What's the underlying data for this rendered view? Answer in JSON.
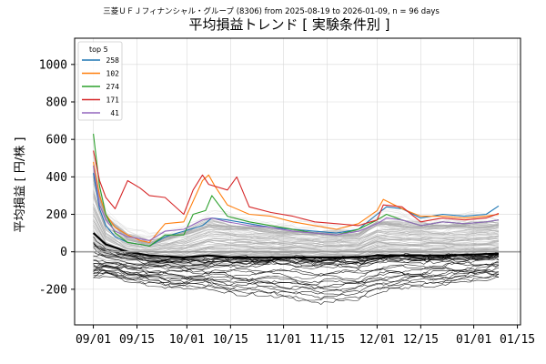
{
  "chart_data": {
    "type": "line",
    "suptitle": "三菱ＵＦＪフィナンシャル・グループ (8306) from 2025-08-19 to 2026-01-09, n = 96 days",
    "title": "平均損益トレンド [ 実験条件別 ]",
    "xlabel": "",
    "ylabel": "平均損益 [ 円/株 ]",
    "xlim": [
      "2025-08-26",
      "2026-01-16"
    ],
    "ylim": [
      -390,
      1140
    ],
    "xticks": [
      {
        "date": "2025-09-01",
        "label": "09/01"
      },
      {
        "date": "2025-09-15",
        "label": "09/15"
      },
      {
        "date": "2025-10-01",
        "label": "10/01"
      },
      {
        "date": "2025-10-15",
        "label": "10/15"
      },
      {
        "date": "2025-11-01",
        "label": "11/01"
      },
      {
        "date": "2025-11-15",
        "label": "11/15"
      },
      {
        "date": "2025-12-01",
        "label": "12/01"
      },
      {
        "date": "2025-12-15",
        "label": "12/15"
      },
      {
        "date": "2026-01-01",
        "label": "01/01"
      },
      {
        "date": "2026-01-15",
        "label": "01/15"
      }
    ],
    "yticks": [
      -200,
      0,
      200,
      400,
      600,
      800,
      1000
    ],
    "grid": true,
    "zero_line": true,
    "legend": {
      "title": "top 5",
      "position": "upper-left"
    },
    "series": [
      {
        "name": "258",
        "color": "#1f77b4",
        "points": [
          [
            "2025-09-01",
            420
          ],
          [
            "2025-09-03",
            230
          ],
          [
            "2025-09-05",
            140
          ],
          [
            "2025-09-08",
            80
          ],
          [
            "2025-09-12",
            50
          ],
          [
            "2025-09-16",
            40
          ],
          [
            "2025-09-19",
            30
          ],
          [
            "2025-09-24",
            80
          ],
          [
            "2025-09-30",
            110
          ],
          [
            "2025-10-06",
            140
          ],
          [
            "2025-10-09",
            180
          ],
          [
            "2025-10-14",
            170
          ],
          [
            "2025-10-21",
            150
          ],
          [
            "2025-10-28",
            130
          ],
          [
            "2025-11-04",
            120
          ],
          [
            "2025-11-11",
            110
          ],
          [
            "2025-11-18",
            100
          ],
          [
            "2025-11-25",
            120
          ],
          [
            "2025-12-01",
            200
          ],
          [
            "2025-12-04",
            240
          ],
          [
            "2025-12-09",
            230
          ],
          [
            "2025-12-15",
            180
          ],
          [
            "2025-12-22",
            200
          ],
          [
            "2025-12-29",
            190
          ],
          [
            "2026-01-05",
            200
          ],
          [
            "2026-01-09",
            245
          ]
        ]
      },
      {
        "name": "102",
        "color": "#ff7f0e",
        "points": [
          [
            "2025-09-01",
            480
          ],
          [
            "2025-09-03",
            300
          ],
          [
            "2025-09-05",
            200
          ],
          [
            "2025-09-08",
            130
          ],
          [
            "2025-09-12",
            90
          ],
          [
            "2025-09-16",
            60
          ],
          [
            "2025-09-19",
            50
          ],
          [
            "2025-09-24",
            150
          ],
          [
            "2025-09-30",
            160
          ],
          [
            "2025-10-06",
            380
          ],
          [
            "2025-10-08",
            410
          ],
          [
            "2025-10-10",
            350
          ],
          [
            "2025-10-14",
            250
          ],
          [
            "2025-10-21",
            200
          ],
          [
            "2025-10-28",
            190
          ],
          [
            "2025-11-04",
            160
          ],
          [
            "2025-11-11",
            140
          ],
          [
            "2025-11-18",
            120
          ],
          [
            "2025-11-25",
            150
          ],
          [
            "2025-12-01",
            220
          ],
          [
            "2025-12-03",
            280
          ],
          [
            "2025-12-09",
            230
          ],
          [
            "2025-12-15",
            190
          ],
          [
            "2025-12-22",
            190
          ],
          [
            "2025-12-29",
            180
          ],
          [
            "2026-01-05",
            190
          ],
          [
            "2026-01-09",
            200
          ]
        ]
      },
      {
        "name": "274",
        "color": "#2ca02c",
        "points": [
          [
            "2025-09-01",
            630
          ],
          [
            "2025-09-03",
            350
          ],
          [
            "2025-09-05",
            200
          ],
          [
            "2025-09-08",
            100
          ],
          [
            "2025-09-12",
            50
          ],
          [
            "2025-09-16",
            40
          ],
          [
            "2025-09-19",
            30
          ],
          [
            "2025-09-24",
            90
          ],
          [
            "2025-09-30",
            90
          ],
          [
            "2025-10-03",
            200
          ],
          [
            "2025-10-07",
            220
          ],
          [
            "2025-10-09",
            300
          ],
          [
            "2025-10-14",
            190
          ],
          [
            "2025-10-21",
            160
          ],
          [
            "2025-10-28",
            140
          ],
          [
            "2025-11-04",
            120
          ],
          [
            "2025-11-11",
            100
          ],
          [
            "2025-11-18",
            90
          ],
          [
            "2025-11-25",
            120
          ],
          [
            "2025-12-01",
            170
          ],
          [
            "2025-12-04",
            200
          ],
          [
            "2025-12-09",
            170
          ],
          [
            "2025-12-15",
            140
          ],
          [
            "2025-12-22",
            160
          ],
          [
            "2025-12-29",
            150
          ],
          [
            "2026-01-05",
            160
          ],
          [
            "2026-01-09",
            170
          ]
        ]
      },
      {
        "name": "171",
        "color": "#d62728",
        "points": [
          [
            "2025-09-01",
            540
          ],
          [
            "2025-09-03",
            380
          ],
          [
            "2025-09-05",
            290
          ],
          [
            "2025-09-08",
            230
          ],
          [
            "2025-09-12",
            380
          ],
          [
            "2025-09-16",
            340
          ],
          [
            "2025-09-19",
            300
          ],
          [
            "2025-09-24",
            290
          ],
          [
            "2025-09-30",
            200
          ],
          [
            "2025-10-03",
            330
          ],
          [
            "2025-10-06",
            410
          ],
          [
            "2025-10-08",
            360
          ],
          [
            "2025-10-14",
            330
          ],
          [
            "2025-10-17",
            400
          ],
          [
            "2025-10-21",
            240
          ],
          [
            "2025-10-28",
            210
          ],
          [
            "2025-11-04",
            190
          ],
          [
            "2025-11-11",
            160
          ],
          [
            "2025-11-18",
            150
          ],
          [
            "2025-11-25",
            140
          ],
          [
            "2025-12-01",
            170
          ],
          [
            "2025-12-03",
            250
          ],
          [
            "2025-12-09",
            240
          ],
          [
            "2025-12-15",
            160
          ],
          [
            "2025-12-22",
            180
          ],
          [
            "2025-12-29",
            170
          ],
          [
            "2026-01-05",
            180
          ],
          [
            "2026-01-09",
            205
          ]
        ]
      },
      {
        "name": "41",
        "color": "#9467bd",
        "points": [
          [
            "2025-09-01",
            460
          ],
          [
            "2025-09-03",
            250
          ],
          [
            "2025-09-05",
            170
          ],
          [
            "2025-09-08",
            110
          ],
          [
            "2025-09-12",
            80
          ],
          [
            "2025-09-16",
            70
          ],
          [
            "2025-09-19",
            60
          ],
          [
            "2025-09-24",
            110
          ],
          [
            "2025-09-30",
            120
          ],
          [
            "2025-10-06",
            170
          ],
          [
            "2025-10-09",
            180
          ],
          [
            "2025-10-14",
            160
          ],
          [
            "2025-10-21",
            140
          ],
          [
            "2025-10-28",
            130
          ],
          [
            "2025-11-04",
            110
          ],
          [
            "2025-11-11",
            100
          ],
          [
            "2025-11-18",
            90
          ],
          [
            "2025-11-25",
            110
          ],
          [
            "2025-12-01",
            150
          ],
          [
            "2025-12-04",
            180
          ],
          [
            "2025-12-09",
            170
          ],
          [
            "2025-12-15",
            140
          ],
          [
            "2025-12-22",
            160
          ],
          [
            "2025-12-29",
            150
          ],
          [
            "2026-01-05",
            160
          ],
          [
            "2026-01-09",
            170
          ]
        ]
      }
    ],
    "background_series": {
      "description_colors": {
        "band": "#bdbdbd",
        "faint": "#e6e6e6",
        "low": "#000000",
        "mean": "#000000"
      },
      "bands": [
        {
          "name": "upper",
          "points": [
            [
              "2025-09-01",
              450
            ],
            [
              "2025-09-05",
              200
            ],
            [
              "2025-09-12",
              90
            ],
            [
              "2025-09-19",
              60
            ],
            [
              "2025-09-30",
              110
            ],
            [
              "2025-10-08",
              170
            ],
            [
              "2025-10-15",
              150
            ],
            [
              "2025-10-28",
              130
            ],
            [
              "2025-11-11",
              110
            ],
            [
              "2025-11-25",
              110
            ],
            [
              "2025-12-01",
              170
            ],
            [
              "2025-12-09",
              160
            ],
            [
              "2025-12-22",
              150
            ],
            [
              "2026-01-09",
              160
            ]
          ]
        },
        {
          "name": "lower",
          "points": [
            [
              "2025-09-01",
              -40
            ],
            [
              "2025-09-05",
              -60
            ],
            [
              "2025-09-12",
              -70
            ],
            [
              "2025-09-19",
              -70
            ],
            [
              "2025-09-30",
              -80
            ],
            [
              "2025-10-08",
              -70
            ],
            [
              "2025-10-15",
              -60
            ],
            [
              "2025-10-28",
              -50
            ],
            [
              "2025-11-11",
              -60
            ],
            [
              "2025-11-25",
              -60
            ],
            [
              "2025-12-01",
              -40
            ],
            [
              "2025-12-09",
              -40
            ],
            [
              "2025-12-22",
              -40
            ],
            [
              "2026-01-09",
              -30
            ]
          ]
        },
        {
          "name": "mean",
          "points": [
            [
              "2025-09-01",
              100
            ],
            [
              "2025-09-05",
              40
            ],
            [
              "2025-09-12",
              0
            ],
            [
              "2025-09-19",
              -20
            ],
            [
              "2025-09-30",
              -30
            ],
            [
              "2025-10-08",
              -20
            ],
            [
              "2025-10-15",
              -30
            ],
            [
              "2025-10-28",
              -30
            ],
            [
              "2025-11-11",
              -30
            ],
            [
              "2025-11-25",
              -30
            ],
            [
              "2025-12-01",
              -20
            ],
            [
              "2025-12-09",
              -20
            ],
            [
              "2025-12-22",
              -20
            ],
            [
              "2026-01-09",
              -10
            ]
          ]
        },
        {
          "name": "bottom",
          "points": [
            [
              "2025-09-01",
              -150
            ],
            [
              "2025-09-05",
              -120
            ],
            [
              "2025-09-12",
              -160
            ],
            [
              "2025-09-19",
              -180
            ],
            [
              "2025-09-30",
              -200
            ],
            [
              "2025-10-08",
              -200
            ],
            [
              "2025-10-15",
              -230
            ],
            [
              "2025-10-28",
              -240
            ],
            [
              "2025-11-11",
              -280
            ],
            [
              "2025-11-25",
              -260
            ],
            [
              "2025-12-01",
              -220
            ],
            [
              "2025-12-09",
              -200
            ],
            [
              "2025-12-22",
              -180
            ],
            [
              "2026-01-09",
              -140
            ]
          ]
        }
      ]
    }
  }
}
